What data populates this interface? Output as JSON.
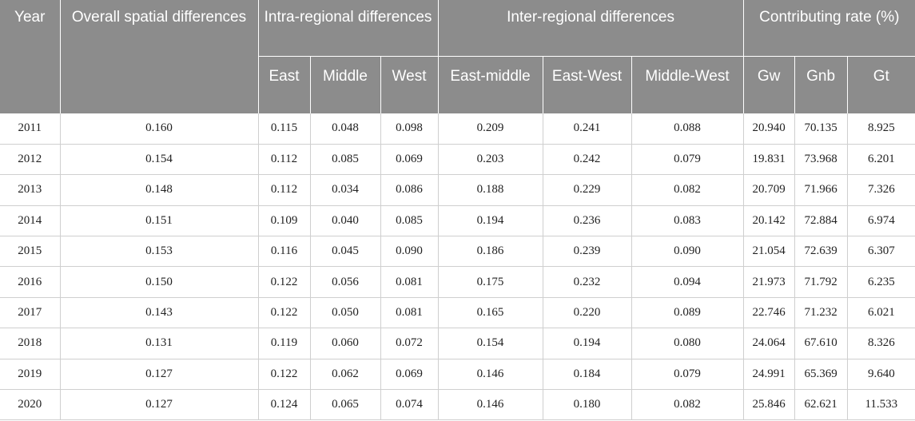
{
  "headers": {
    "year": "Year",
    "overall": "Overall spatial differences",
    "intra": "Intra-regional differences",
    "inter": "Inter-regional differences",
    "contrib": "Contributing rate (%)",
    "east": "East",
    "middle": "Middle",
    "west": "West",
    "east_middle": "East-middle",
    "east_west": "East-West",
    "middle_west": "Middle-West",
    "gw": "Gw",
    "gnb": "Gnb",
    "gt": "Gt"
  },
  "rows": [
    [
      "2011",
      "0.160",
      "0.115",
      "0.048",
      "0.098",
      "0.209",
      "0.241",
      "0.088",
      "20.940",
      "70.135",
      "8.925"
    ],
    [
      "2012",
      "0.154",
      "0.112",
      "0.085",
      "0.069",
      "0.203",
      "0.242",
      "0.079",
      "19.831",
      "73.968",
      "6.201"
    ],
    [
      "2013",
      "0.148",
      "0.112",
      "0.034",
      "0.086",
      "0.188",
      "0.229",
      "0.082",
      "20.709",
      "71.966",
      "7.326"
    ],
    [
      "2014",
      "0.151",
      "0.109",
      "0.040",
      "0.085",
      "0.194",
      "0.236",
      "0.083",
      "20.142",
      "72.884",
      "6.974"
    ],
    [
      "2015",
      "0.153",
      "0.116",
      "0.045",
      "0.090",
      "0.186",
      "0.239",
      "0.090",
      "21.054",
      "72.639",
      "6.307"
    ],
    [
      "2016",
      "0.150",
      "0.122",
      "0.056",
      "0.081",
      "0.175",
      "0.232",
      "0.094",
      "21.973",
      "71.792",
      "6.235"
    ],
    [
      "2017",
      "0.143",
      "0.122",
      "0.050",
      "0.081",
      "0.165",
      "0.220",
      "0.089",
      "22.746",
      "71.232",
      "6.021"
    ],
    [
      "2018",
      "0.131",
      "0.119",
      "0.060",
      "0.072",
      "0.154",
      "0.194",
      "0.080",
      "24.064",
      "67.610",
      "8.326"
    ],
    [
      "2019",
      "0.127",
      "0.122",
      "0.062",
      "0.069",
      "0.146",
      "0.184",
      "0.079",
      "24.991",
      "65.369",
      "9.640"
    ],
    [
      "2020",
      "0.127",
      "0.124",
      "0.065",
      "0.074",
      "0.146",
      "0.180",
      "0.082",
      "25.846",
      "62.621",
      "11.533"
    ]
  ]
}
